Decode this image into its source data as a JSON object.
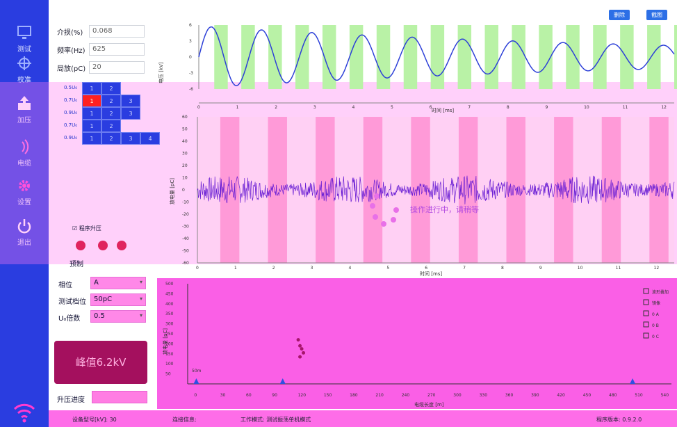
{
  "sidebar": {
    "items": [
      {
        "label": "测试",
        "icon": "monitor-icon"
      },
      {
        "label": "校准",
        "icon": "target-icon"
      },
      {
        "label": "加压",
        "icon": "upload-icon"
      },
      {
        "label": "电缆",
        "icon": "signal-icon"
      },
      {
        "label": "设置",
        "icon": "gear-icon"
      },
      {
        "label": "退出",
        "icon": "power-icon"
      }
    ]
  },
  "top_form": {
    "dielectric_label": "介损(%)",
    "dielectric_value": "0.068",
    "freq_label": "频率(Hz)",
    "freq_value": "625",
    "pd_label": "局放(pC)",
    "pd_value": "20"
  },
  "top_buttons": {
    "delete_label": "删除",
    "capture_label": "截图"
  },
  "voltage_grid": {
    "rows": [
      {
        "label": "0.5U₀",
        "cells": [
          "1",
          "2"
        ],
        "red": []
      },
      {
        "label": "0.7U₀",
        "cells": [
          "1",
          "2",
          "3"
        ],
        "red": [
          0
        ]
      },
      {
        "label": "0.9U₀",
        "cells": [
          "1",
          "2",
          "3"
        ],
        "red": []
      },
      {
        "label": "0.7U₀",
        "cells": [
          "1",
          "2"
        ],
        "red": []
      },
      {
        "label": "0.9U₀",
        "cells": [
          "1",
          "2",
          "3",
          "4"
        ],
        "red": []
      }
    ]
  },
  "program_boost_label": "程序升压",
  "preset_label": "预制",
  "lower_form": {
    "phase_label": "相位",
    "phase_value": "A",
    "range_label": "测试档位",
    "range_value": "50pC",
    "multiple_label": "U₀倍数",
    "multiple_value": "0.5"
  },
  "peak": {
    "label": "峰值6.2kV"
  },
  "progress": {
    "label": "升压进度"
  },
  "loading": {
    "text": "操作进行中，请稍等"
  },
  "status": {
    "model": "设备型号[kV]: 30",
    "connection": "连接信息:",
    "mode": "工作模式: 测试振荡单机模式",
    "version": "程序版本: 0.9.2.0"
  },
  "chart_data": [
    {
      "type": "line",
      "xlabel": "时间 [ms]",
      "ylabel": "电压 [kV]",
      "xlim": [
        0,
        12.3
      ],
      "ylim": [
        -6,
        6
      ],
      "xticks": [
        0,
        1,
        2,
        3,
        4,
        5,
        6,
        7,
        8,
        9,
        10,
        11,
        12
      ],
      "yticks": [
        6,
        3,
        0,
        -3,
        -6
      ],
      "series": [
        {
          "values": [
            [
              0,
              0
            ],
            [
              0.5,
              4.2
            ],
            [
              1,
              5.8
            ],
            [
              1.5,
              4
            ],
            [
              2,
              0
            ],
            [
              2.5,
              -3
            ],
            [
              3,
              -4
            ]
          ]
        }
      ],
      "description_wave": "damped oscillation, period ~1.3ms, amplitude decaying 5.8→2.2"
    },
    {
      "type": "line",
      "xlabel": "时间 [ms]",
      "ylabel": "放电量 [pC]",
      "xlim": [
        0,
        12.5
      ],
      "ylim": [
        -60,
        60
      ],
      "xticks": [
        0,
        1,
        2,
        3,
        4,
        5,
        6,
        7,
        8,
        9,
        10,
        11,
        12
      ],
      "yticks": [
        60,
        50,
        40,
        30,
        20,
        10,
        0,
        -10,
        -20,
        -30,
        -40,
        -50,
        -60
      ],
      "series": [
        {
          "noise_amplitude": 12
        }
      ]
    },
    {
      "type": "scatter",
      "xlabel": "电缆长度 [m]",
      "ylabel": "放电量 [pC]",
      "xlim": [
        -10,
        550
      ],
      "ylim": [
        0,
        500
      ],
      "xticks": [
        0,
        30,
        60,
        90,
        120,
        150,
        180,
        210,
        240,
        270,
        300,
        330,
        360,
        390,
        420,
        450,
        480,
        510,
        540
      ],
      "yticks": [
        500,
        450,
        400,
        350,
        300,
        250,
        200,
        150,
        100,
        50
      ],
      "legend": [
        "波形叠加",
        "镜像",
        "0 A",
        "0 B",
        "0 C"
      ],
      "points": [
        [
          118,
          220
        ],
        [
          120,
          190
        ],
        [
          122,
          175
        ],
        [
          124,
          155
        ],
        [
          120,
          135
        ]
      ],
      "annotation": "50m"
    }
  ]
}
